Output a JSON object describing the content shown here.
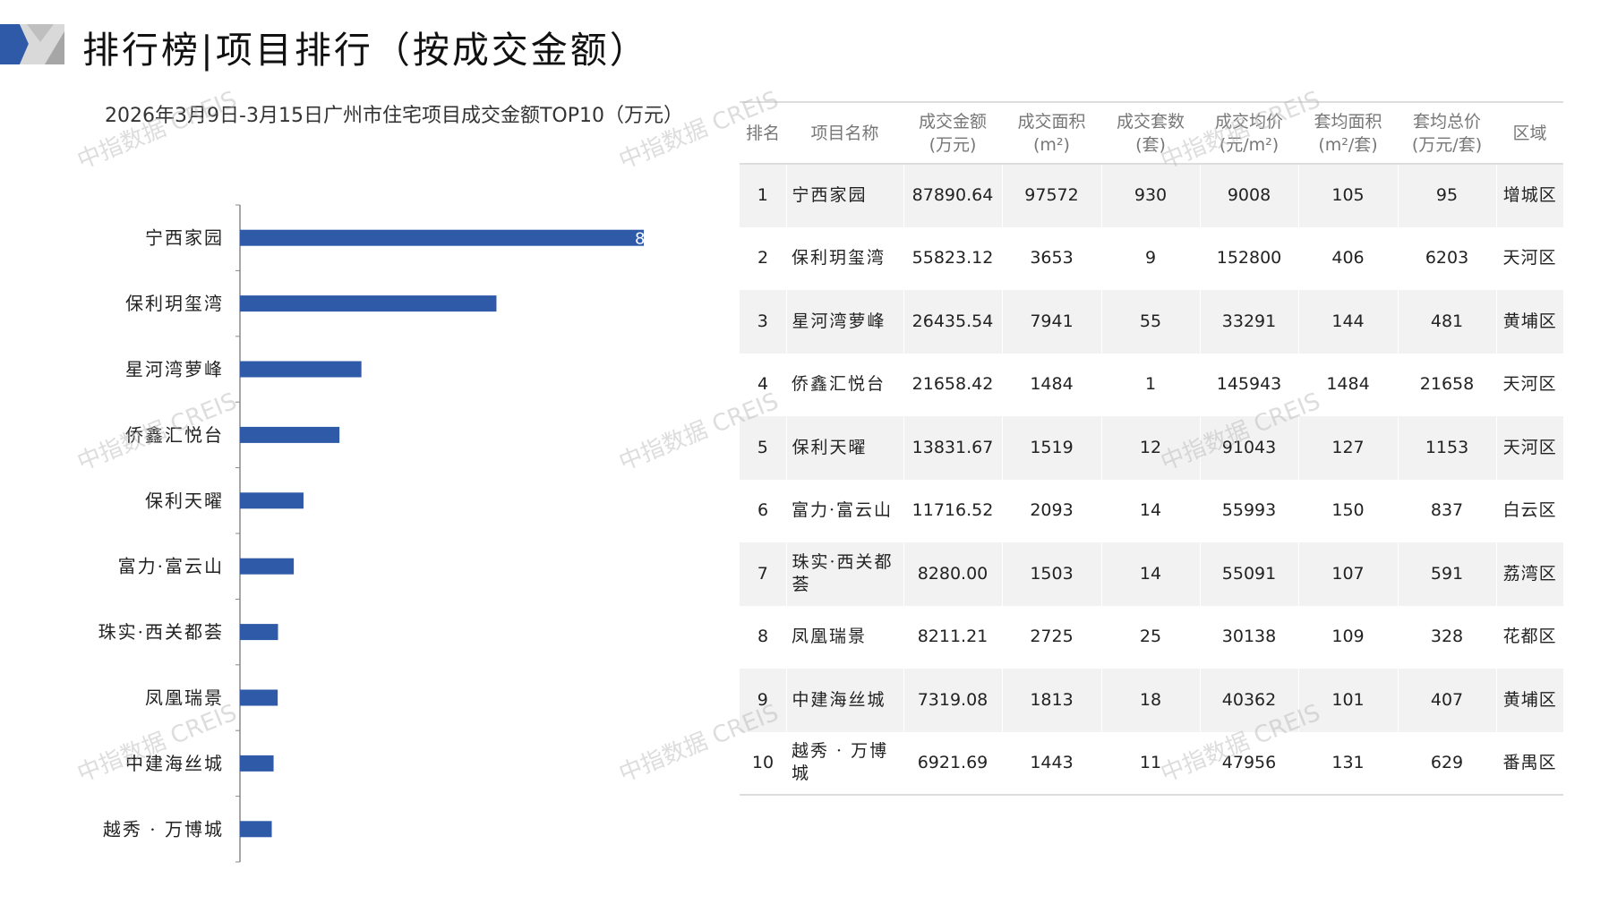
{
  "header": {
    "title": "排行榜|项目排行（按成交金额）"
  },
  "colors": {
    "accent": "#2f5aa8",
    "logo_gray": "#a6a6a6",
    "logo_light": "#d9d9d9"
  },
  "watermark": "中指数据 CREIS",
  "chart_data": {
    "type": "bar",
    "orientation": "horizontal",
    "title": "2026年3月9日-3月15日广州市住宅项目成交金额TOP10（万元）",
    "categories": [
      "宁西家园",
      "保利玥玺湾",
      "星河湾萝峰",
      "侨鑫汇悦台",
      "保利天曜",
      "富力·富云山",
      "珠实·西关都荟",
      "凤凰瑞景",
      "中建海丝城",
      "越秀 · 万博城"
    ],
    "values": [
      87890.64,
      55823.12,
      26435.54,
      21658.42,
      13831.67,
      11716.52,
      8280.0,
      8211.21,
      7319.08,
      6921.69
    ],
    "data_label_visible": "8",
    "color": "#2f5aa8",
    "grid": false
  },
  "table": {
    "headers": [
      [
        "排名"
      ],
      [
        "项目名称"
      ],
      [
        "成交金额",
        "(万元)"
      ],
      [
        "成交面积",
        "(m²)"
      ],
      [
        "成交套数",
        "(套)"
      ],
      [
        "成交均价",
        "(元/m²)"
      ],
      [
        "套均面积",
        "(m²/套)"
      ],
      [
        "套均总价",
        "(万元/套)"
      ],
      [
        "区域"
      ]
    ],
    "rows": [
      [
        "1",
        "宁西家园",
        "87890.64",
        "97572",
        "930",
        "9008",
        "105",
        "95",
        "增城区"
      ],
      [
        "2",
        "保利玥玺湾",
        "55823.12",
        "3653",
        "9",
        "152800",
        "406",
        "6203",
        "天河区"
      ],
      [
        "3",
        "星河湾萝峰",
        "26435.54",
        "7941",
        "55",
        "33291",
        "144",
        "481",
        "黄埔区"
      ],
      [
        "4",
        "侨鑫汇悦台",
        "21658.42",
        "1484",
        "1",
        "145943",
        "1484",
        "21658",
        "天河区"
      ],
      [
        "5",
        "保利天曜",
        "13831.67",
        "1519",
        "12",
        "91043",
        "127",
        "1153",
        "天河区"
      ],
      [
        "6",
        "富力·富云山",
        "11716.52",
        "2093",
        "14",
        "55993",
        "150",
        "837",
        "白云区"
      ],
      [
        "7",
        "珠实·西关都荟",
        "8280.00",
        "1503",
        "14",
        "55091",
        "107",
        "591",
        "荔湾区"
      ],
      [
        "8",
        "凤凰瑞景",
        "8211.21",
        "2725",
        "25",
        "30138",
        "109",
        "328",
        "花都区"
      ],
      [
        "9",
        "中建海丝城",
        "7319.08",
        "1813",
        "18",
        "40362",
        "101",
        "407",
        "黄埔区"
      ],
      [
        "10",
        "越秀 · 万博城",
        "6921.69",
        "1443",
        "11",
        "47956",
        "131",
        "629",
        "番禺区"
      ]
    ]
  }
}
